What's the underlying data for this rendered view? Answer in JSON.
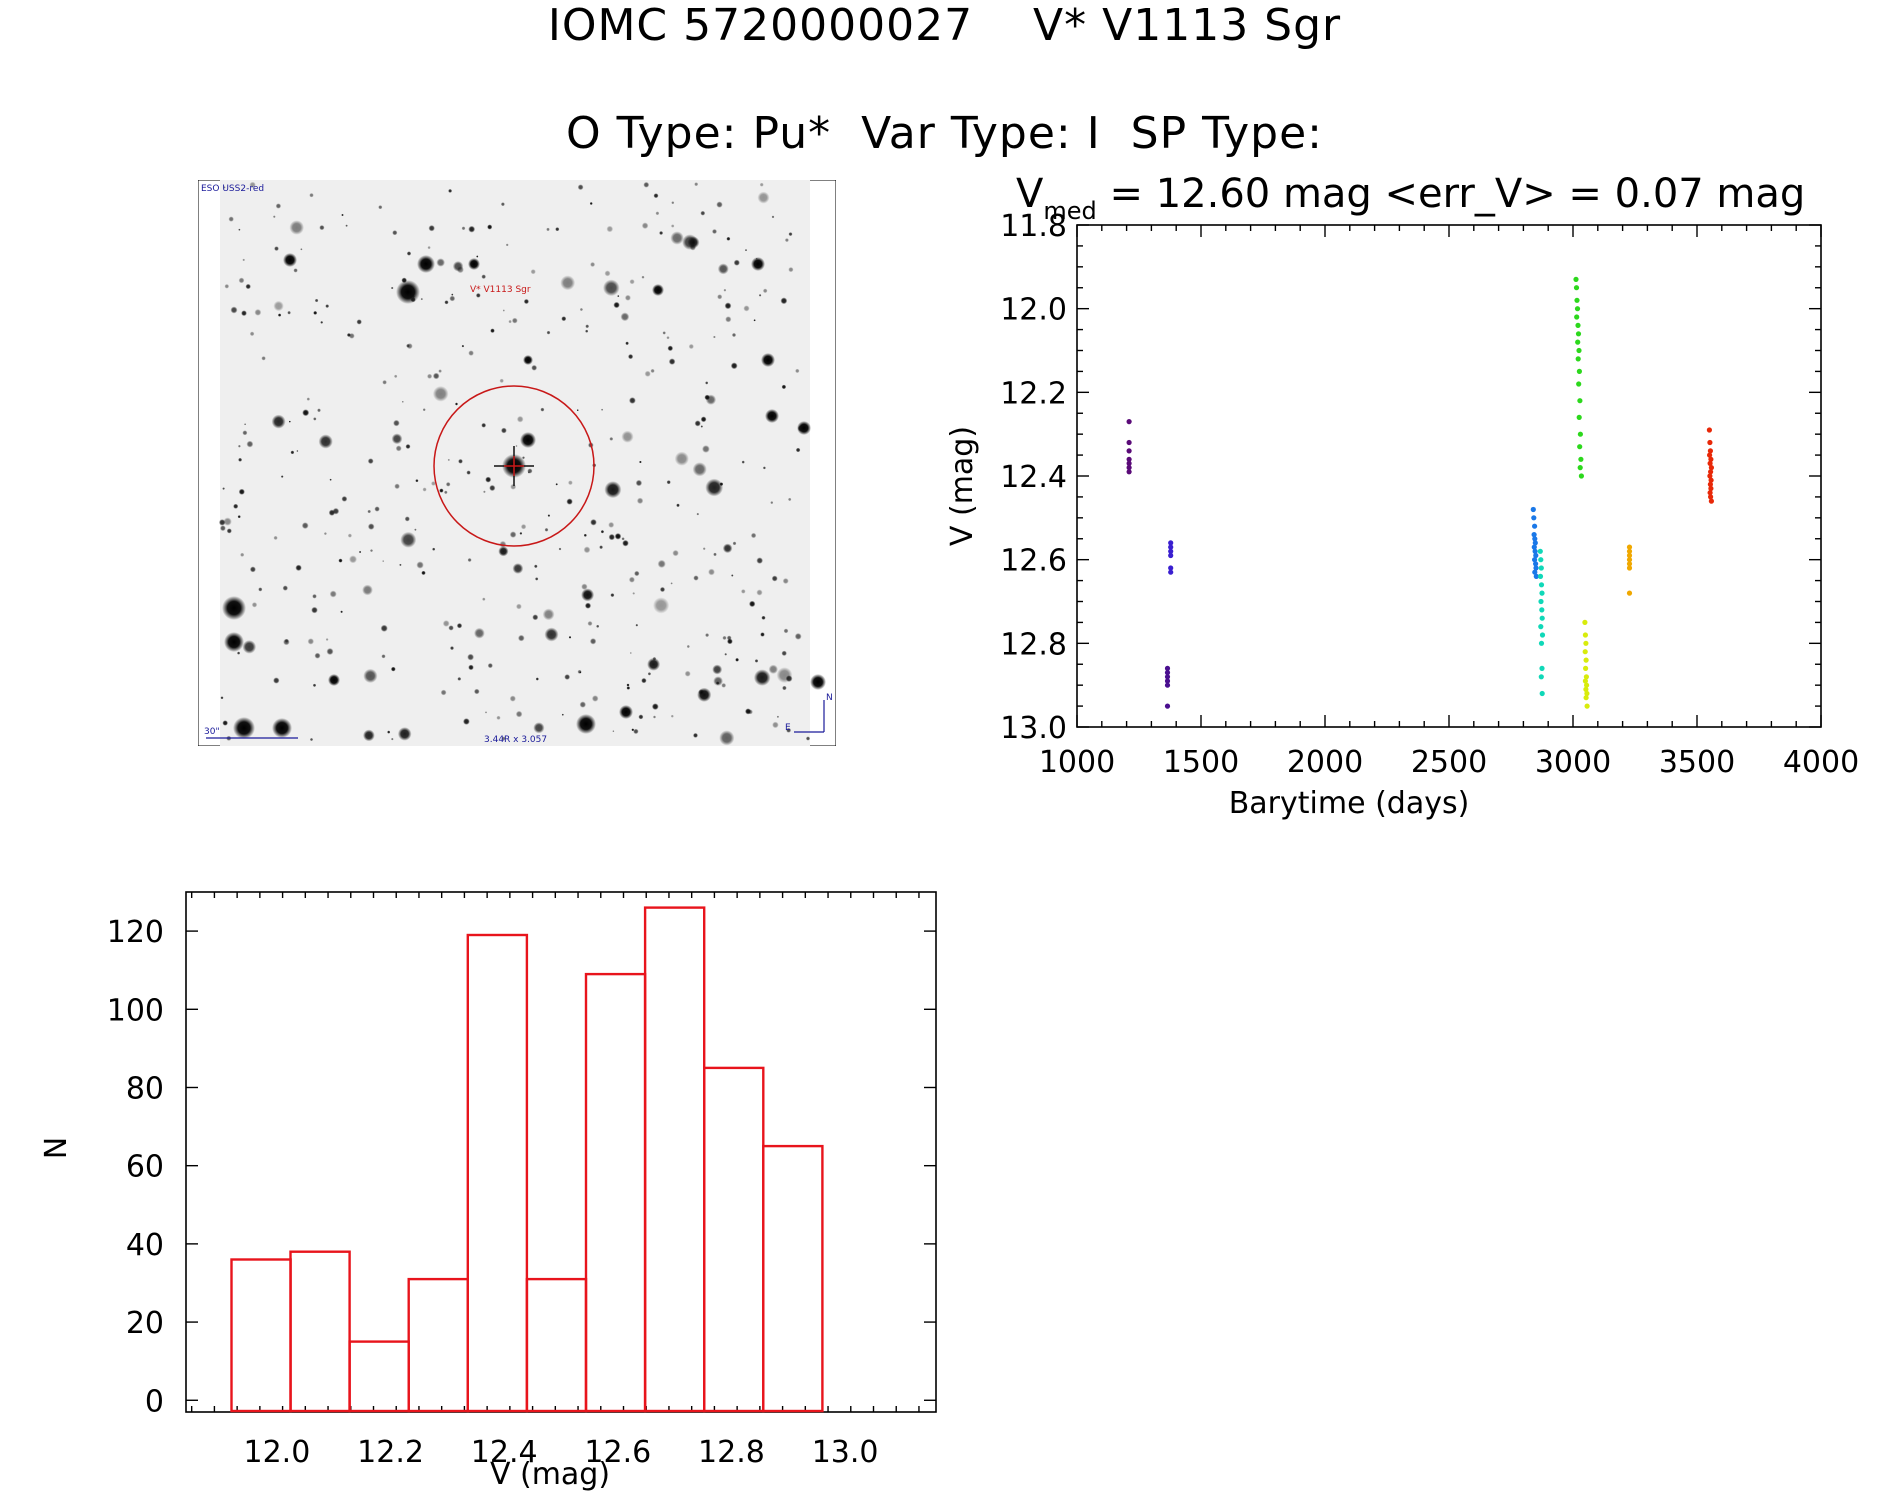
{
  "title_line1": "IOMC 5720000027    V* V1113 Sgr",
  "title_line2": "O Type: Pu*  Var Type: I  SP Type:",
  "finder": {
    "survey_label": "ESO USS2-red",
    "target_label": "V* V1113 Sgr",
    "scale_label": "30\"",
    "field_label": "3.44R x 3.057",
    "north_label": "N",
    "east_label": "E"
  },
  "lc_header": {
    "vmed_symbol": "V",
    "vmed_sub": "med",
    "text": " =  12.60 mag <err_V> = 0.07 mag"
  },
  "chart_data": [
    {
      "type": "scatter",
      "title": "",
      "xlabel": "Barytime (days)",
      "ylabel": "V (mag)",
      "xlim": [
        1000,
        4000
      ],
      "ylim": [
        13.0,
        11.8
      ],
      "y_inverted": true,
      "x_ticks": [
        "1000",
        "1500",
        "2000",
        "2500",
        "3000",
        "3500",
        "4000"
      ],
      "y_ticks": [
        "11.8",
        "12.0",
        "12.2",
        "12.4",
        "12.6",
        "12.8",
        "13.0"
      ],
      "grid": false,
      "series": [
        {
          "color": "#5a0a78",
          "x": [
            1210,
            1210,
            1210,
            1210,
            1210,
            1210,
            1210
          ],
          "y": [
            12.27,
            12.32,
            12.34,
            12.36,
            12.37,
            12.38,
            12.39
          ]
        },
        {
          "color": "#3a1fd0",
          "x": [
            1378,
            1378,
            1378,
            1378,
            1378,
            1378
          ],
          "y": [
            12.56,
            12.57,
            12.58,
            12.59,
            12.62,
            12.63
          ]
        },
        {
          "color": "#4a0f8f",
          "x": [
            1365,
            1365,
            1365,
            1365,
            1365,
            1365
          ],
          "y": [
            12.86,
            12.87,
            12.88,
            12.89,
            12.9,
            12.95
          ]
        },
        {
          "color": "#1a78e8",
          "x": [
            2840,
            2842,
            2845,
            2843,
            2846,
            2848,
            2844,
            2847,
            2850,
            2845,
            2849,
            2851,
            2846,
            2852
          ],
          "y": [
            12.48,
            12.5,
            12.52,
            12.54,
            12.55,
            12.56,
            12.57,
            12.58,
            12.59,
            12.6,
            12.61,
            12.62,
            12.63,
            12.64
          ]
        },
        {
          "color": "#10d8b8",
          "x": [
            2868,
            2870,
            2872,
            2869,
            2873,
            2875,
            2871,
            2874,
            2876,
            2870,
            2877,
            2873,
            2875,
            2872,
            2876
          ],
          "y": [
            12.58,
            12.6,
            12.62,
            12.64,
            12.66,
            12.68,
            12.7,
            12.72,
            12.74,
            12.76,
            12.78,
            12.8,
            12.86,
            12.88,
            12.92
          ]
        },
        {
          "color": "#2cd81c",
          "x": [
            3012,
            3014,
            3016,
            3018,
            3015,
            3020,
            3022,
            3019,
            3024,
            3021,
            3026,
            3023,
            3028,
            3025,
            3030,
            3027,
            3032,
            3029,
            3034
          ],
          "y": [
            11.93,
            11.95,
            11.98,
            12.0,
            12.02,
            12.04,
            12.06,
            12.08,
            12.1,
            12.12,
            12.15,
            12.18,
            12.22,
            12.26,
            12.3,
            12.33,
            12.36,
            12.38,
            12.4
          ]
        },
        {
          "color": "#d8ec0c",
          "x": [
            3048,
            3050,
            3052,
            3049,
            3053,
            3051,
            3054,
            3050,
            3055,
            3052,
            3056,
            3053,
            3057
          ],
          "y": [
            12.75,
            12.78,
            12.8,
            12.82,
            12.84,
            12.86,
            12.88,
            12.89,
            12.9,
            12.91,
            12.92,
            12.93,
            12.95
          ]
        },
        {
          "color": "#f0a800",
          "x": [
            3228,
            3228,
            3228,
            3228,
            3228,
            3228,
            3228
          ],
          "y": [
            12.57,
            12.58,
            12.59,
            12.6,
            12.61,
            12.62,
            12.68
          ]
        },
        {
          "color": "#e82808",
          "x": [
            3550,
            3552,
            3554,
            3551,
            3556,
            3553,
            3558,
            3555,
            3552,
            3557,
            3554,
            3556,
            3553,
            3555,
            3558
          ],
          "y": [
            12.29,
            12.32,
            12.34,
            12.35,
            12.36,
            12.37,
            12.38,
            12.39,
            12.4,
            12.41,
            12.42,
            12.43,
            12.44,
            12.45,
            12.46
          ]
        }
      ]
    },
    {
      "type": "bar",
      "title": "",
      "xlabel": "V (mag)",
      "ylabel": "N",
      "xlim": [
        11.84,
        13.16
      ],
      "ylim": [
        -3,
        130
      ],
      "x_ticks": [
        "12.0",
        "12.2",
        "12.4",
        "12.6",
        "12.8",
        "13.0"
      ],
      "y_ticks": [
        "0",
        "20",
        "40",
        "60",
        "80",
        "100",
        "120"
      ],
      "bar_color": "#e8141c",
      "bin_edges": [
        11.92,
        12.024,
        12.128,
        12.232,
        12.336,
        12.44,
        12.544,
        12.648,
        12.752,
        12.856,
        12.96
      ],
      "values": [
        36,
        38,
        15,
        31,
        119,
        31,
        109,
        126,
        85,
        65
      ]
    }
  ]
}
